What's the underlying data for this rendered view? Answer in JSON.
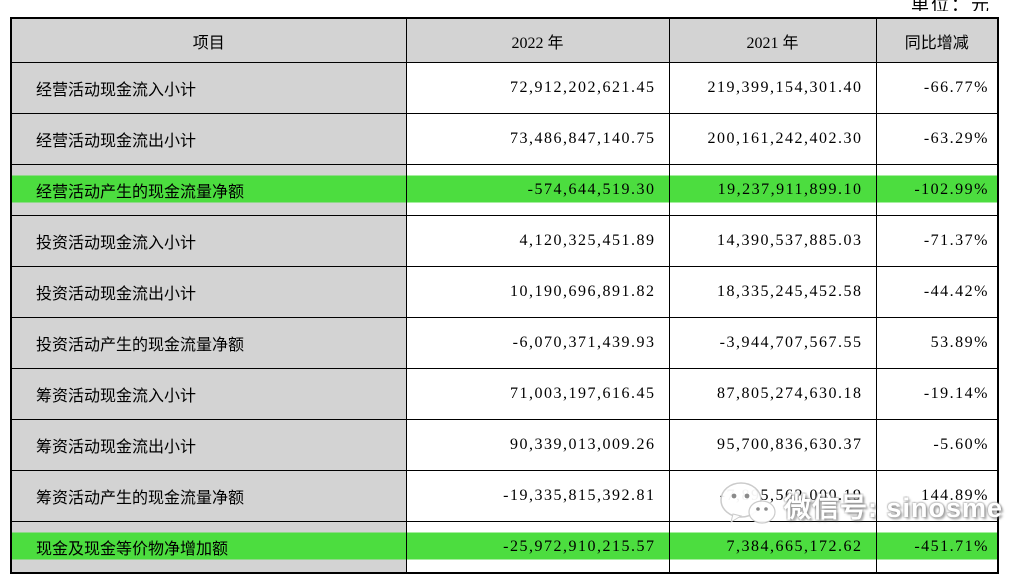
{
  "page": {
    "unit_label": "单位：元"
  },
  "table": {
    "columns": [
      "项目",
      "2022 年",
      "2021 年",
      "同比增减"
    ],
    "rows": [
      {
        "item": "经营活动现金流入小计",
        "y2022": "72,912,202,621.45",
        "y2021": "219,399,154,301.40",
        "yoy": "-66.77%",
        "highlight": false
      },
      {
        "item": "经营活动现金流出小计",
        "y2022": "73,486,847,140.75",
        "y2021": "200,161,242,402.30",
        "yoy": "-63.29%",
        "highlight": false
      },
      {
        "item": "经营活动产生的现金流量净额",
        "y2022": "-574,644,519.30",
        "y2021": "19,237,911,899.10",
        "yoy": "-102.99%",
        "highlight": true
      },
      {
        "item": "投资活动现金流入小计",
        "y2022": "4,120,325,451.89",
        "y2021": "14,390,537,885.03",
        "yoy": "-71.37%",
        "highlight": false
      },
      {
        "item": "投资活动现金流出小计",
        "y2022": "10,190,696,891.82",
        "y2021": "18,335,245,452.58",
        "yoy": "-44.42%",
        "highlight": false
      },
      {
        "item": "投资活动产生的现金流量净额",
        "y2022": "-6,070,371,439.93",
        "y2021": "-3,944,707,567.55",
        "yoy": "53.89%",
        "highlight": false
      },
      {
        "item": "筹资活动现金流入小计",
        "y2022": "71,003,197,616.45",
        "y2021": "87,805,274,630.18",
        "yoy": "-19.14%",
        "highlight": false
      },
      {
        "item": "筹资活动现金流出小计",
        "y2022": "90,339,013,009.26",
        "y2021": "95,700,836,630.37",
        "yoy": "-5.60%",
        "highlight": false
      },
      {
        "item": "筹资活动产生的现金流量净额",
        "y2022": "-19,335,815,392.81",
        "y2021": "-7,895,562,000.19",
        "yoy": "144.89%",
        "highlight": false
      },
      {
        "item": "现金及现金等价物净增加额",
        "y2022": "-25,972,910,215.57",
        "y2021": "7,384,665,172.62",
        "yoy": "-451.71%",
        "highlight": true
      }
    ]
  },
  "watermark": {
    "text": "微信号: sinosme",
    "icon": "wechat-icon"
  },
  "colors": {
    "header_bg": "#d3d3d3",
    "highlight_green": "#4cdd3f",
    "border": "#000000",
    "watermark_text": "#ffffff"
  }
}
